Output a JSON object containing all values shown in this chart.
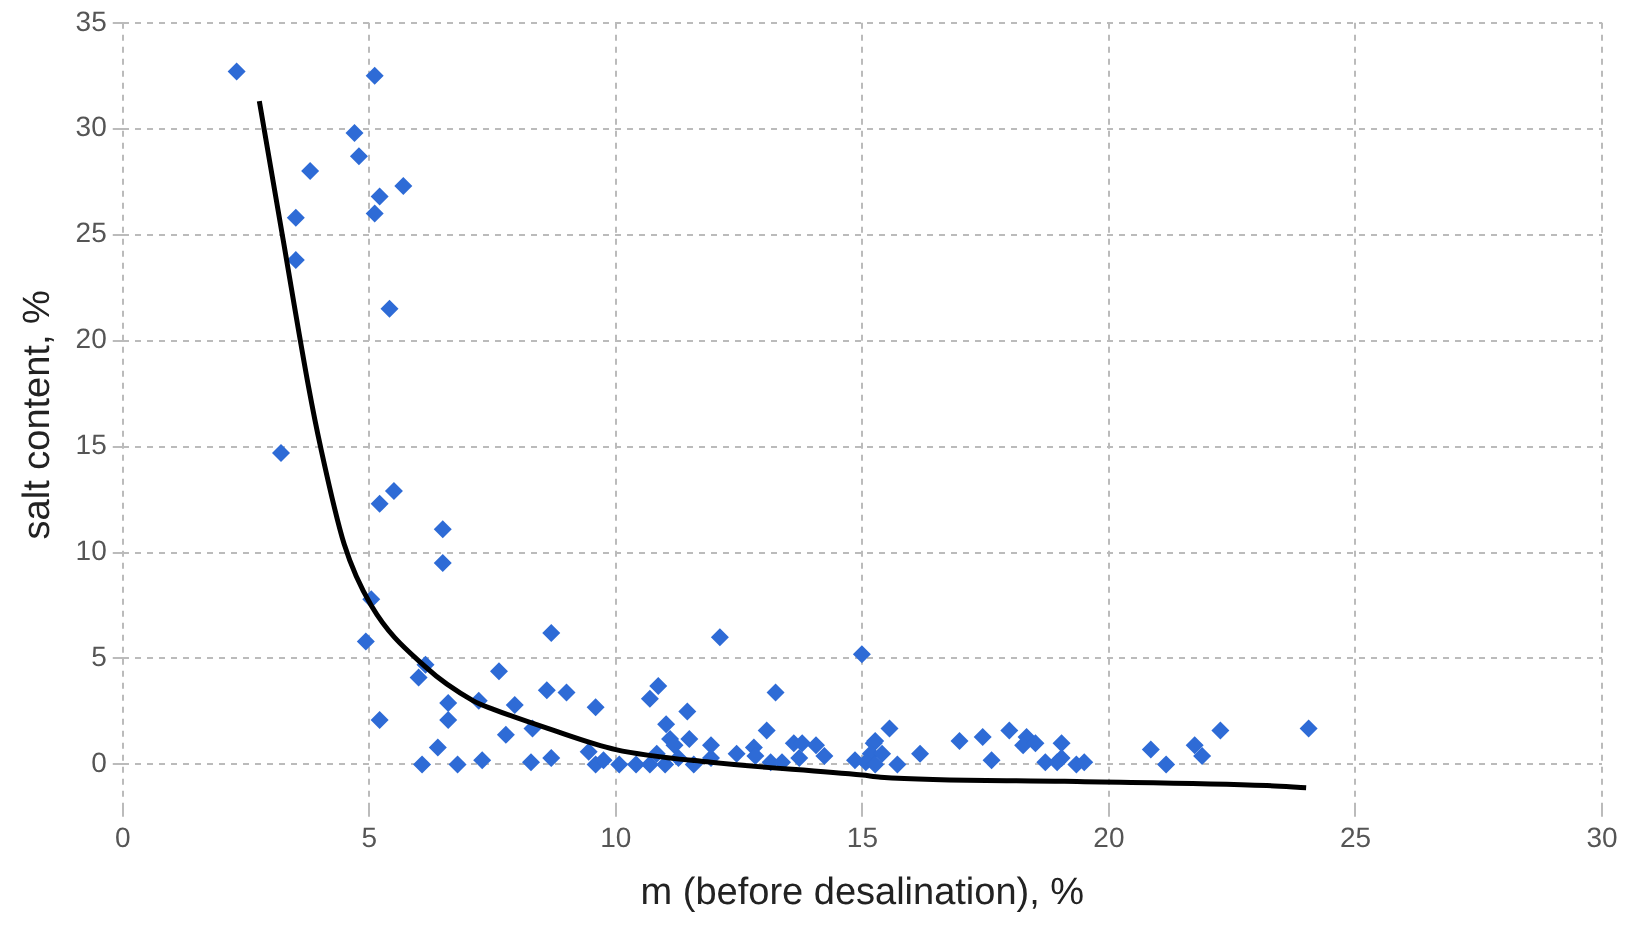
{
  "chart_data": {
    "type": "scatter",
    "xlabel": "m (before desalination), %",
    "ylabel": "salt content, %",
    "xlim": [
      0,
      30
    ],
    "xticks": [
      0,
      5,
      10,
      15,
      20,
      25,
      30
    ],
    "ylim": [
      -2,
      35
    ],
    "yticks": [
      0,
      5,
      10,
      15,
      20,
      25,
      30,
      35
    ],
    "grid": true,
    "legend": false,
    "marker": "diamond",
    "series": [
      {
        "color": "#2e6bd6",
        "x": [
          2.31,
          5.11,
          4.7,
          4.79,
          3.8,
          5.69,
          5.21,
          5.11,
          3.51,
          3.51,
          5.41,
          3.21,
          5.5,
          5.21,
          6.49,
          6.49,
          5.04,
          4.93,
          6.14,
          6.0,
          6.6,
          7.22,
          5.21,
          6.6,
          6.39,
          6.07,
          6.79,
          7.29,
          7.63,
          8.69,
          12.11,
          14.99,
          8.6,
          9.0,
          10.86,
          10.69,
          13.24,
          7.95,
          9.59,
          11.45,
          11.02,
          7.77,
          8.31,
          13.06,
          11.49,
          11.1,
          11.19,
          11.93,
          12.8,
          13.61,
          13.78,
          14.06,
          14.23,
          12.45,
          8.28,
          8.69,
          9.45,
          9.59,
          9.75,
          10.07,
          10.41,
          10.69,
          11.0,
          11.27,
          11.58,
          11.93,
          12.83,
          13.14,
          13.37,
          13.72,
          14.85,
          15.23,
          15.17,
          10.83,
          15.55,
          15.26,
          15.4,
          15.07,
          15.26,
          15.71,
          16.17,
          16.97,
          17.44,
          17.62,
          17.98,
          18.33,
          18.26,
          18.51,
          19.04,
          19.04,
          18.71,
          18.95,
          19.34,
          19.5,
          20.85,
          21.16,
          21.74,
          21.89,
          22.26,
          24.05
        ],
        "values": [
          32.7,
          32.5,
          29.8,
          28.7,
          28.0,
          27.3,
          26.8,
          26.0,
          25.8,
          23.8,
          21.5,
          14.7,
          12.9,
          12.3,
          11.1,
          9.5,
          7.8,
          5.8,
          4.7,
          4.1,
          2.9,
          3.0,
          2.1,
          2.1,
          0.8,
          0,
          0,
          0.2,
          4.4,
          6.2,
          6.0,
          5.2,
          3.5,
          3.4,
          3.7,
          3.1,
          3.4,
          2.8,
          2.7,
          2.5,
          1.9,
          1.4,
          1.7,
          1.6,
          1.2,
          1.2,
          0.9,
          0.9,
          0.8,
          1.0,
          1.0,
          0.9,
          0.4,
          0.5,
          0.1,
          0.3,
          0.6,
          0,
          0.2,
          0,
          0,
          0,
          0,
          0.3,
          0,
          0.3,
          0.4,
          0.1,
          0.1,
          0.3,
          0.2,
          1.0,
          0.5,
          0.5,
          1.7,
          1.1,
          0.5,
          0.1,
          0,
          0,
          0.5,
          1.1,
          1.3,
          0.2,
          1.6,
          1.3,
          0.9,
          1.0,
          1.0,
          0.3,
          0.1,
          0.1,
          0,
          0.1,
          0.7,
          0,
          0.9,
          0.4,
          1.6,
          1.7
        ]
      },
      {
        "type": "line",
        "color": "#000000",
        "marker": "none",
        "x": [
          2.77,
          3.25,
          3.77,
          4.01,
          4.49,
          5.04,
          6.14,
          7.11,
          7.52,
          8.62,
          10.0,
          11.93,
          15.0,
          15.37,
          19.1,
          23.2,
          24.0
        ],
        "values": [
          31.3,
          24.8,
          17.8,
          15.0,
          10.4,
          7.5,
          4.6,
          3.0,
          2.6,
          1.7,
          0.7,
          0.1,
          -0.5,
          -0.6,
          -0.8,
          -1.0,
          -1.1
        ]
      }
    ]
  }
}
